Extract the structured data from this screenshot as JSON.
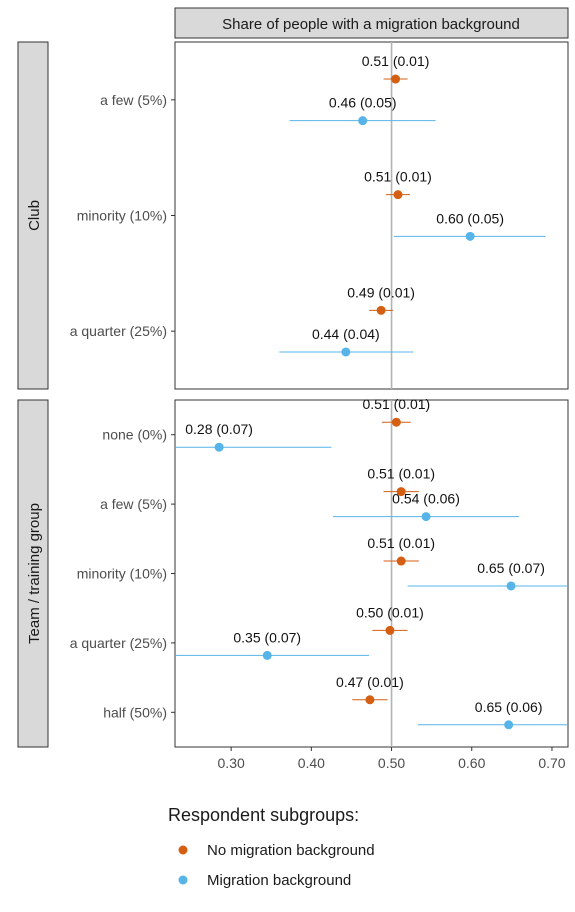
{
  "chart_data": {
    "type": "scatter",
    "facet_title": "Share of people with a migration background",
    "x_ticks": [
      "0.30",
      "0.40",
      "0.50",
      "0.60",
      "0.70"
    ],
    "xlim": [
      0.23,
      0.72
    ],
    "reference_line": 0.5,
    "legend": {
      "title": "Respondent subgroups:",
      "items": [
        {
          "label": "No migration background",
          "color": "#d45f13"
        },
        {
          "label": "Migration background",
          "color": "#56b4e9"
        }
      ]
    },
    "panels": [
      {
        "strip_label": "Club",
        "categories": [
          "a few (5%)",
          "minority (10%)",
          "a quarter (25%)"
        ],
        "series": [
          {
            "name": "No migration background",
            "color": "#d45f13",
            "points": [
              {
                "category": "a few (5%)",
                "value": 0.505,
                "ci": [
                  0.49,
                  0.52
                ],
                "label": "0.51 (0.01)"
              },
              {
                "category": "minority (10%)",
                "value": 0.508,
                "ci": [
                  0.493,
                  0.523
                ],
                "label": "0.51 (0.01)"
              },
              {
                "category": "a quarter (25%)",
                "value": 0.487,
                "ci": [
                  0.472,
                  0.502
                ],
                "label": "0.49 (0.01)"
              }
            ]
          },
          {
            "name": "Migration background",
            "color": "#56b4e9",
            "points": [
              {
                "category": "a few (5%)",
                "value": 0.464,
                "ci": [
                  0.373,
                  0.555
                ],
                "label": "0.46 (0.05)"
              },
              {
                "category": "minority (10%)",
                "value": 0.598,
                "ci": [
                  0.503,
                  0.692
                ],
                "label": "0.60 (0.05)"
              },
              {
                "category": "a quarter (25%)",
                "value": 0.443,
                "ci": [
                  0.36,
                  0.527
                ],
                "label": "0.44 (0.04)"
              }
            ]
          }
        ]
      },
      {
        "strip_label": "Team / training group",
        "categories": [
          "none (0%)",
          "a few (5%)",
          "minority (10%)",
          "a quarter (25%)",
          "half (50%)"
        ],
        "series": [
          {
            "name": "No migration background",
            "color": "#d45f13",
            "points": [
              {
                "category": "none (0%)",
                "value": 0.506,
                "ci": [
                  0.488,
                  0.524
                ],
                "label": "0.51 (0.01)"
              },
              {
                "category": "a few (5%)",
                "value": 0.512,
                "ci": [
                  0.49,
                  0.534
                ],
                "label": "0.51 (0.01)"
              },
              {
                "category": "minority (10%)",
                "value": 0.512,
                "ci": [
                  0.49,
                  0.534
                ],
                "label": "0.51 (0.01)"
              },
              {
                "category": "a quarter (25%)",
                "value": 0.498,
                "ci": [
                  0.476,
                  0.52
                ],
                "label": "0.50 (0.01)"
              },
              {
                "category": "half (50%)",
                "value": 0.473,
                "ci": [
                  0.451,
                  0.495
                ],
                "label": "0.47 (0.01)"
              }
            ]
          },
          {
            "name": "Migration background",
            "color": "#56b4e9",
            "points": [
              {
                "category": "none (0%)",
                "value": 0.285,
                "ci": [
                  0.23,
                  0.425
                ],
                "label": "0.28 (0.07)"
              },
              {
                "category": "a few (5%)",
                "value": 0.543,
                "ci": [
                  0.427,
                  0.659
                ],
                "label": "0.54 (0.06)"
              },
              {
                "category": "minority (10%)",
                "value": 0.649,
                "ci": [
                  0.52,
                  0.72
                ],
                "label": "0.65 (0.07)"
              },
              {
                "category": "a quarter (25%)",
                "value": 0.345,
                "ci": [
                  0.23,
                  0.472
                ],
                "label": "0.35 (0.07)"
              },
              {
                "category": "half (50%)",
                "value": 0.646,
                "ci": [
                  0.533,
                  0.72
                ],
                "label": "0.65 (0.06)"
              }
            ]
          }
        ]
      }
    ]
  }
}
